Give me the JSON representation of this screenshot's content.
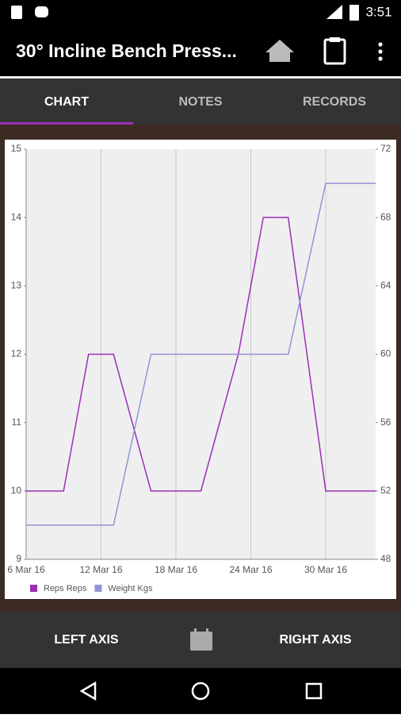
{
  "status_bar": {
    "time": "3:51"
  },
  "app_bar": {
    "title": "30° Incline Bench Press..."
  },
  "tabs": [
    {
      "label": "CHART",
      "selected": true
    },
    {
      "label": "NOTES",
      "selected": false
    },
    {
      "label": "RECORDS",
      "selected": false
    }
  ],
  "chart_data": {
    "type": "line",
    "xlim": [
      "2016-03-06",
      "2016-04-03"
    ],
    "xticks": [
      {
        "value": "2016-03-06",
        "label": "6 Mar 16"
      },
      {
        "value": "2016-03-12",
        "label": "12 Mar 16"
      },
      {
        "value": "2016-03-18",
        "label": "18 Mar 16"
      },
      {
        "value": "2016-03-24",
        "label": "24 Mar 16"
      },
      {
        "value": "2016-03-30",
        "label": "30 Mar 16"
      }
    ],
    "ylim": [
      9,
      15
    ],
    "yticks": [
      9,
      10,
      11,
      12,
      13,
      14,
      15
    ],
    "y2lim": [
      48,
      72
    ],
    "y2ticks": [
      48,
      52,
      56,
      60,
      64,
      68,
      72
    ],
    "x_grid": true,
    "series": [
      {
        "name": "Reps Reps",
        "color": "#9b2fb4",
        "axis": "y",
        "x": [
          "2016-03-06",
          "2016-03-09",
          "2016-03-11",
          "2016-03-13",
          "2016-03-16",
          "2016-03-20",
          "2016-03-23",
          "2016-03-25",
          "2016-03-27",
          "2016-03-30",
          "2016-04-03"
        ],
        "values": [
          10,
          10,
          12,
          12,
          10,
          10,
          12,
          14,
          14,
          10,
          10
        ]
      },
      {
        "name": "Weight Kgs",
        "color": "#9393d6",
        "axis": "y2",
        "x": [
          "2016-03-06",
          "2016-03-13",
          "2016-03-16",
          "2016-03-27",
          "2016-03-30",
          "2016-04-03"
        ],
        "values": [
          50,
          50,
          60,
          60,
          70,
          70
        ]
      }
    ]
  },
  "bottom_bar": {
    "left": "LEFT AXIS",
    "right": "RIGHT AXIS"
  }
}
